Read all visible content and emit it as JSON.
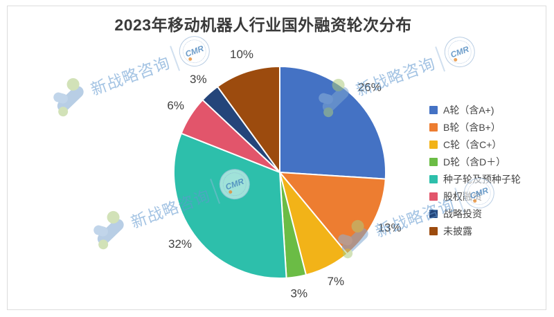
{
  "title": "2023年移动机器人行业国外融资轮次分布",
  "watermark": {
    "text": "新战略咨询",
    "badge_text": "CMR",
    "text_color": "#6197CF",
    "logo_blue": "#7FA7CF",
    "logo_green": "#AECB7E"
  },
  "chart_data": {
    "type": "pie",
    "title": "2023年移动机器人行业国外融资轮次分布",
    "start_angle": "12-o'clock",
    "direction": "clockwise",
    "labels_format": "percent",
    "legend_position": "right",
    "slices": [
      {
        "label": "A轮（含A+)",
        "value": 26,
        "display": "26%",
        "color": "#4472C4"
      },
      {
        "label": "B轮（含B+）",
        "value": 13,
        "display": "13%",
        "color": "#ED7D31"
      },
      {
        "label": "C轮（含C+）",
        "value": 7,
        "display": "7%",
        "color": "#F2B318"
      },
      {
        "label": "D轮（含D＋）",
        "value": 3,
        "display": "3%",
        "color": "#6BBC45"
      },
      {
        "label": "种子轮及预种子轮",
        "value": 32,
        "display": "32%",
        "color": "#2DBFAB"
      },
      {
        "label": "股权融资",
        "value": 6,
        "display": "6%",
        "color": "#E2556B"
      },
      {
        "label": "战略投资",
        "value": 3,
        "display": "3%",
        "color": "#24457A"
      },
      {
        "label": "未披露",
        "value": 10,
        "display": "10%",
        "color": "#9C4B0E"
      }
    ]
  }
}
